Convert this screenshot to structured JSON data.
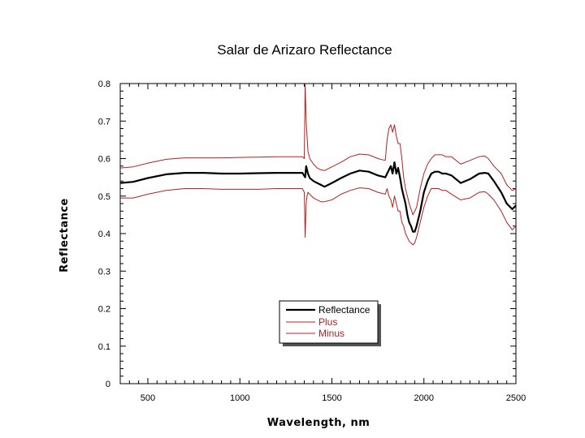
{
  "chart_data": {
    "type": "line",
    "title": "Salar de Arizaro Reflectance",
    "xlabel": "Wavelength, nm",
    "ylabel": "Reflectance",
    "xlim": [
      350,
      2500
    ],
    "ylim": [
      0,
      0.8
    ],
    "x_ticks": [
      500,
      1000,
      1500,
      2000,
      2500
    ],
    "x_tick_labels": [
      "500",
      "1000",
      "1500",
      "2000",
      "2500"
    ],
    "y_ticks": [
      0,
      0.1,
      0.2,
      0.3,
      0.4,
      0.5,
      0.6,
      0.7,
      0.8
    ],
    "y_tick_labels": [
      "0",
      "0.1",
      "0.2",
      "0.3",
      "0.4",
      "0.5",
      "0.6",
      "0.7",
      "0.8"
    ],
    "grid": false,
    "legend_position": "bottom-center",
    "colors": {
      "reflectance": "#000000",
      "plus": "#b22222",
      "minus": "#b22222"
    },
    "legend": [
      "Reflectance",
      "Plus",
      "Minus"
    ],
    "series": [
      {
        "name": "Reflectance",
        "x": [
          350,
          420,
          500,
          600,
          700,
          800,
          900,
          1000,
          1100,
          1200,
          1300,
          1340,
          1355,
          1360,
          1370,
          1380,
          1400,
          1420,
          1440,
          1460,
          1500,
          1550,
          1600,
          1650,
          1700,
          1750,
          1790,
          1810,
          1820,
          1830,
          1840,
          1850,
          1860,
          1870,
          1880,
          1890,
          1900,
          1910,
          1920,
          1930,
          1940,
          1950,
          1960,
          1980,
          2000,
          2020,
          2040,
          2060,
          2080,
          2100,
          2120,
          2150,
          2200,
          2250,
          2300,
          2330,
          2350,
          2380,
          2420,
          2450,
          2480,
          2500
        ],
        "y": [
          0.535,
          0.538,
          0.548,
          0.558,
          0.562,
          0.562,
          0.56,
          0.56,
          0.561,
          0.562,
          0.562,
          0.562,
          0.55,
          0.58,
          0.56,
          0.548,
          0.54,
          0.535,
          0.53,
          0.525,
          0.535,
          0.548,
          0.56,
          0.568,
          0.565,
          0.555,
          0.55,
          0.57,
          0.58,
          0.56,
          0.59,
          0.56,
          0.575,
          0.55,
          0.52,
          0.5,
          0.48,
          0.45,
          0.43,
          0.42,
          0.405,
          0.405,
          0.42,
          0.46,
          0.51,
          0.54,
          0.56,
          0.565,
          0.565,
          0.56,
          0.56,
          0.555,
          0.535,
          0.545,
          0.56,
          0.562,
          0.56,
          0.54,
          0.51,
          0.48,
          0.465,
          0.475
        ]
      },
      {
        "name": "Plus",
        "x": [
          350,
          420,
          500,
          600,
          700,
          800,
          900,
          1000,
          1100,
          1200,
          1300,
          1340,
          1350,
          1355,
          1360,
          1370,
          1380,
          1400,
          1420,
          1440,
          1460,
          1500,
          1550,
          1600,
          1650,
          1700,
          1750,
          1790,
          1800,
          1810,
          1820,
          1830,
          1840,
          1850,
          1860,
          1870,
          1880,
          1890,
          1900,
          1920,
          1940,
          1960,
          1980,
          2000,
          2020,
          2040,
          2060,
          2080,
          2100,
          2120,
          2150,
          2200,
          2250,
          2300,
          2330,
          2350,
          2380,
          2420,
          2450,
          2480,
          2500
        ],
        "y": [
          0.575,
          0.578,
          0.588,
          0.598,
          0.602,
          0.602,
          0.602,
          0.603,
          0.604,
          0.605,
          0.605,
          0.605,
          0.6,
          0.8,
          0.7,
          0.62,
          0.6,
          0.585,
          0.575,
          0.57,
          0.568,
          0.578,
          0.59,
          0.605,
          0.612,
          0.61,
          0.6,
          0.595,
          0.65,
          0.68,
          0.69,
          0.67,
          0.69,
          0.66,
          0.64,
          0.64,
          0.6,
          0.55,
          0.52,
          0.48,
          0.45,
          0.47,
          0.52,
          0.56,
          0.585,
          0.6,
          0.61,
          0.61,
          0.61,
          0.605,
          0.605,
          0.585,
          0.595,
          0.605,
          0.607,
          0.6,
          0.58,
          0.56,
          0.53,
          0.515,
          0.52
        ]
      },
      {
        "name": "Minus",
        "x": [
          350,
          420,
          500,
          600,
          700,
          800,
          900,
          1000,
          1100,
          1200,
          1300,
          1340,
          1350,
          1355,
          1360,
          1365,
          1370,
          1380,
          1400,
          1420,
          1440,
          1460,
          1500,
          1550,
          1600,
          1650,
          1700,
          1750,
          1790,
          1800,
          1810,
          1820,
          1830,
          1840,
          1850,
          1860,
          1870,
          1880,
          1890,
          1900,
          1920,
          1940,
          1950,
          1960,
          1980,
          2000,
          2020,
          2040,
          2060,
          2080,
          2100,
          2120,
          2150,
          2200,
          2250,
          2300,
          2330,
          2350,
          2380,
          2420,
          2450,
          2480,
          2500
        ],
        "y": [
          0.495,
          0.495,
          0.505,
          0.515,
          0.52,
          0.52,
          0.518,
          0.518,
          0.518,
          0.52,
          0.52,
          0.52,
          0.51,
          0.39,
          0.48,
          0.5,
          0.51,
          0.505,
          0.495,
          0.49,
          0.485,
          0.485,
          0.49,
          0.505,
          0.515,
          0.522,
          0.52,
          0.51,
          0.505,
          0.52,
          0.5,
          0.49,
          0.47,
          0.5,
          0.48,
          0.46,
          0.46,
          0.43,
          0.42,
          0.4,
          0.38,
          0.37,
          0.375,
          0.39,
          0.43,
          0.47,
          0.5,
          0.52,
          0.52,
          0.52,
          0.515,
          0.515,
          0.505,
          0.49,
          0.495,
          0.51,
          0.512,
          0.505,
          0.49,
          0.46,
          0.43,
          0.41,
          0.42
        ]
      }
    ]
  }
}
